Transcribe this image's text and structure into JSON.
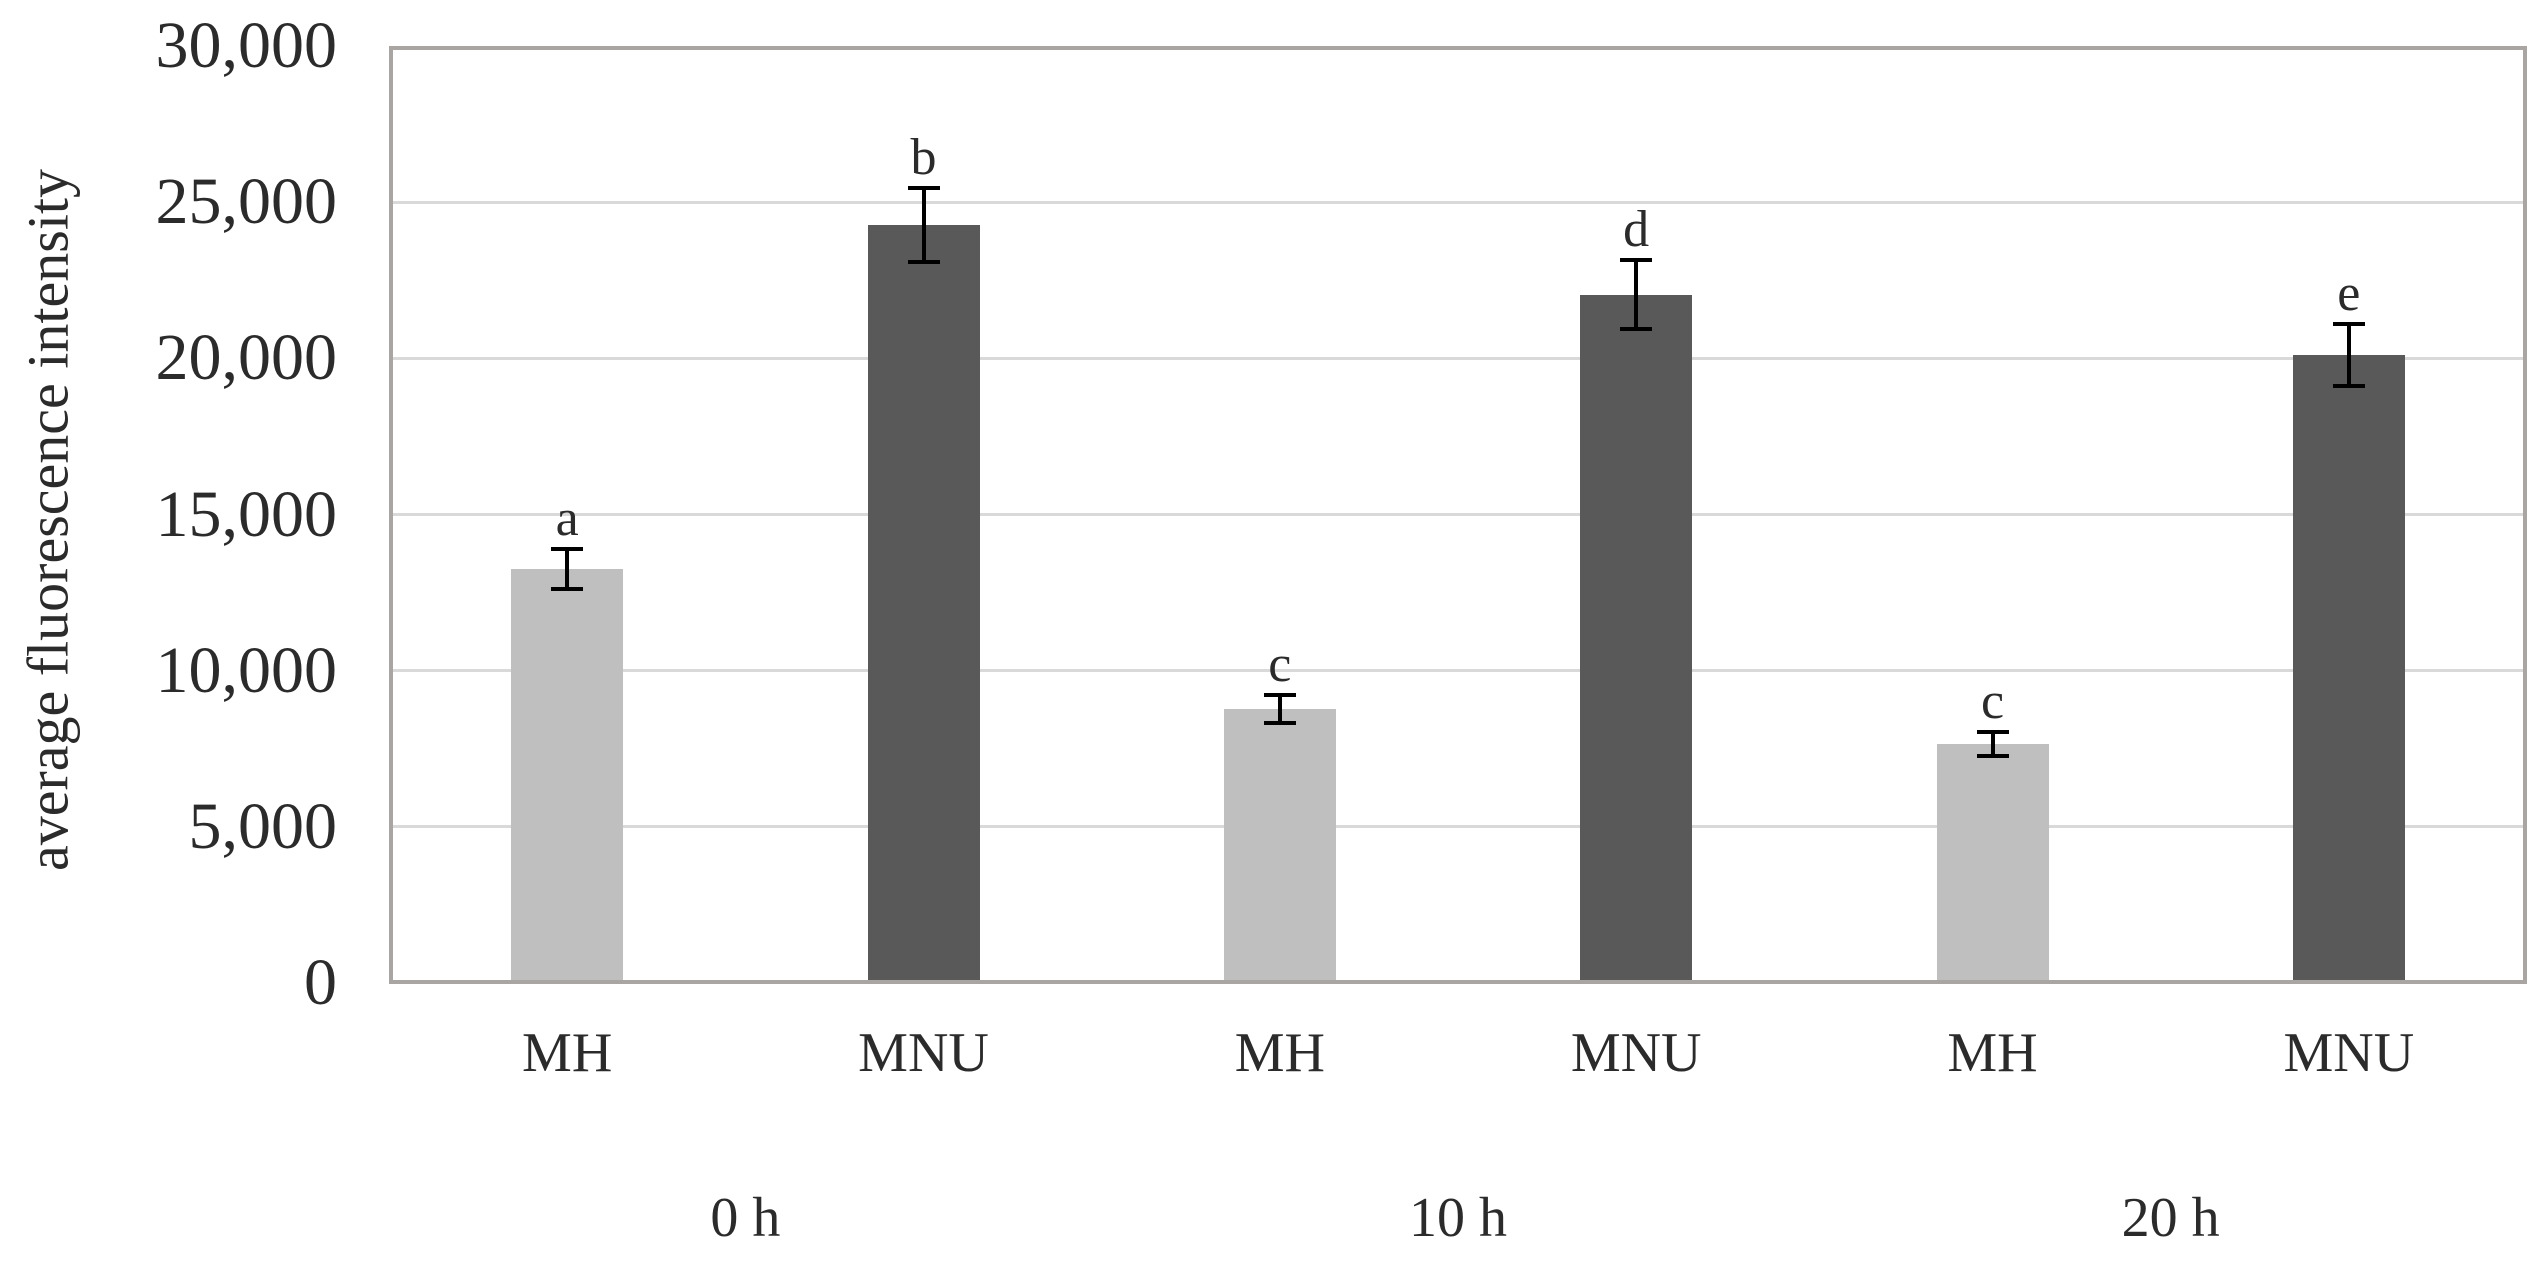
{
  "chart_data": {
    "type": "bar",
    "title": "",
    "xlabel": "",
    "ylabel": "average fluorescence intensity",
    "ylim": [
      0,
      30000
    ],
    "ytick_interval": 5000,
    "ytick_labels": [
      "0",
      "5,000",
      "10,000",
      "15,000",
      "20,000",
      "25,000",
      "30,000"
    ],
    "grid": true,
    "legend_position": "none",
    "groups": [
      {
        "label": "0 h",
        "bars": [
          {
            "category": "MH",
            "value": 13270,
            "error": 640,
            "letter": "a",
            "shade": "light"
          },
          {
            "category": "MNU",
            "value": 24270,
            "error": 1180,
            "letter": "b",
            "shade": "dark"
          }
        ]
      },
      {
        "label": "10 h",
        "bars": [
          {
            "category": "MH",
            "value": 8780,
            "error": 440,
            "letter": "c",
            "shade": "light"
          },
          {
            "category": "MNU",
            "value": 22040,
            "error": 1110,
            "letter": "d",
            "shade": "dark"
          }
        ]
      },
      {
        "label": "20 h",
        "bars": [
          {
            "category": "MH",
            "value": 7650,
            "error": 390,
            "letter": "c",
            "shade": "light"
          },
          {
            "category": "MNU",
            "value": 20110,
            "error": 1000,
            "letter": "e",
            "shade": "dark"
          }
        ]
      }
    ],
    "colors": {
      "light_bar": "#bfbfbf",
      "dark_bar": "#595959",
      "gridline": "#d9d9d9",
      "plot_border": "#a8a5a2",
      "error_bar": "#000000",
      "text": "#2b2b2b"
    }
  }
}
